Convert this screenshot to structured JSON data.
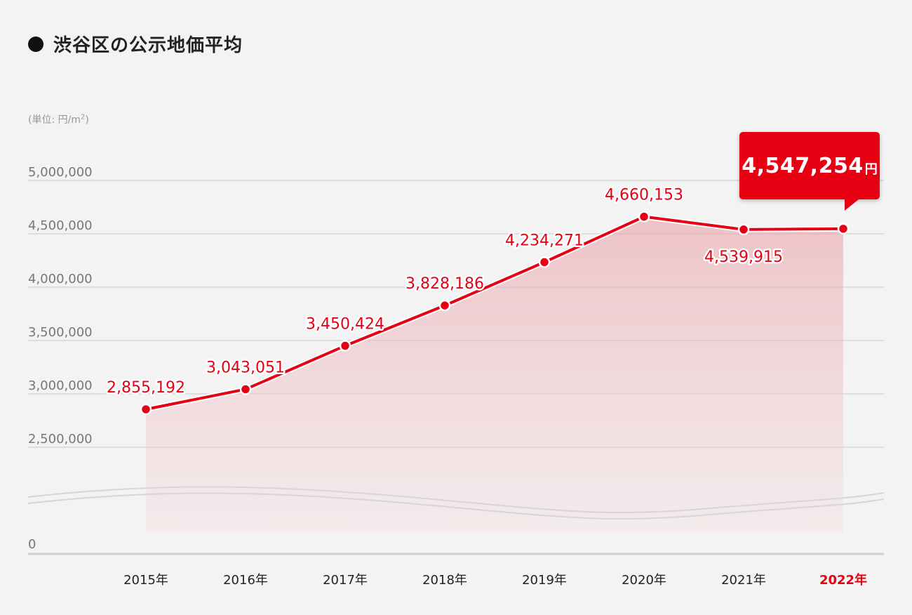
{
  "title": "渋谷区の公示地価平均",
  "unit_label": {
    "prefix": "(単位: 円/m",
    "sup": "2",
    "suffix": ")"
  },
  "callout": {
    "value": "4,547,254",
    "unit": "円"
  },
  "chart_data": {
    "type": "area",
    "categories": [
      "2015年",
      "2016年",
      "2017年",
      "2018年",
      "2019年",
      "2020年",
      "2021年",
      "2022年"
    ],
    "values": [
      2855192,
      3043051,
      3450424,
      3828186,
      4234271,
      4660153,
      4539915,
      4547254
    ],
    "data_labels": [
      "2,855,192",
      "3,043,051",
      "3,450,424",
      "3,828,186",
      "4,234,271",
      "4,660,153",
      "4,539,915",
      ""
    ],
    "highlight_index": 7,
    "yticks": [
      {
        "value": 0,
        "label": "0"
      },
      {
        "value": 2500000,
        "label": "2,500,000"
      },
      {
        "value": 3000000,
        "label": "3,000,000"
      },
      {
        "value": 3500000,
        "label": "3,500,000"
      },
      {
        "value": 4000000,
        "label": "4,000,000"
      },
      {
        "value": 4500000,
        "label": "4,500,000"
      },
      {
        "value": 5000000,
        "label": "5,000,000"
      }
    ],
    "ylim": [
      0,
      5000000
    ],
    "axis_break": true,
    "grid": true,
    "line_color": "#e60012",
    "fill_color": "#ef9aa3"
  }
}
